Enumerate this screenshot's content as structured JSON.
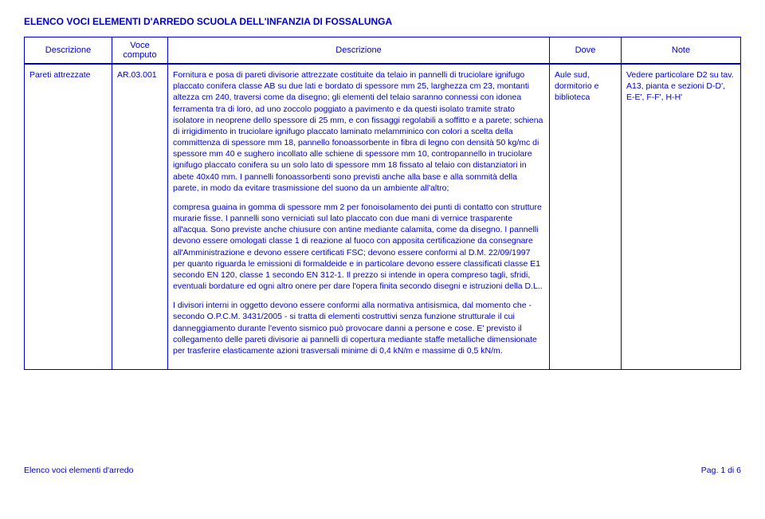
{
  "title": "ELENCO VOCI ELEMENTI D'ARREDO SCUOLA DELL'INFANZIA DI FOSSALUNGA",
  "header": {
    "col1": "Descrizione",
    "col2a": "Voce",
    "col2b": "computo",
    "col3": "Descrizione",
    "col4": "Dove",
    "col5": "Note"
  },
  "row": {
    "desc1": "Pareti attrezzate",
    "voce": "AR.03.001",
    "para1": "Fornitura e posa di pareti divisorie attrezzate costituite da telaio in pannelli di truciolare ignifugo placcato conifera classe AB su due lati e bordato di spessore mm 25, larghezza cm 23, montanti altezza cm 240, traversi come da disegno; gli elementi del telaio saranno connessi con idonea ferramenta tra di loro, ad uno zoccolo poggiato a pavimento e da questi isolato tramite strato isolatore in neoprene dello spessore di 25 mm, e con fissaggi regolabili a soffitto e a parete; schiena di irrigidimento in truciolare ignifugo placcato laminato melamminico con colori a scelta della committenza di spessore mm 18, pannello fonoassorbente in fibra di legno con densità 50 kg/mc di spessore mm 40 e sughero incollato alle schiene di spessore mm 10, contropannello in truciolare ignifugo placcato conifera su un solo lato di spessore mm 18 fissato al telaio con distanziatori in abete 40x40 mm. I pannelli fonoassorbenti sono previsti anche alla base e alla sommità della parete, in modo da evitare trasmissione del suono da un ambiente all'altro;",
    "para2": "compresa guaina in gomma di spessore mm 2 per fonoisolamento dei punti di contatto con strutture murarie fisse. I pannelli sono verniciati sul lato placcato con due mani di vernice trasparente all'acqua. Sono previste anche chiusure con antine mediante calamita, come da disegno. I pannelli devono essere omologati classe 1 di reazione al fuoco con apposita certificazione da consegnare all'Amministrazione e devono essere certificati FSC; devono essere conformi al D.M. 22/09/1997 per quanto riguarda le emissioni di formaldeide e in particolare devono essere classificati classe E1 secondo EN 120, classe 1 secondo EN 312-1. Il prezzo si intende in opera compreso tagli, sfridi, eventuali bordature ed ogni altro onere per dare l'opera finita secondo disegni e istruzioni della D.L..",
    "para3": "I divisori interni in oggetto devono essere conformi alla normativa antisismica, dal momento che - secondo O.P.C.M. 3431/2005 - si tratta di elementi costruttivi senza funzione strutturale il cui danneggiamento durante l'evento sismico può provocare danni a persone e cose. E' previsto il collegamento delle pareti divisorie ai pannelli di copertura mediante staffe metalliche dimensionate per trasferire elasticamente azioni trasversali minime di 0,4 kN/m e massime di 0,5 kN/m.",
    "dove": "Aule sud, dormitorio e biblioteca",
    "note": "Vedere particolare D2 su tav. A13, pianta e sezioni D-D', E-E', F-F', H-H'"
  },
  "footer": {
    "left": "Elenco voci elementi d'arredo",
    "right": "Pag. 1 di 6"
  },
  "colors": {
    "text": "#0000cc",
    "border": "#0000cc",
    "background": "#ffffff"
  }
}
